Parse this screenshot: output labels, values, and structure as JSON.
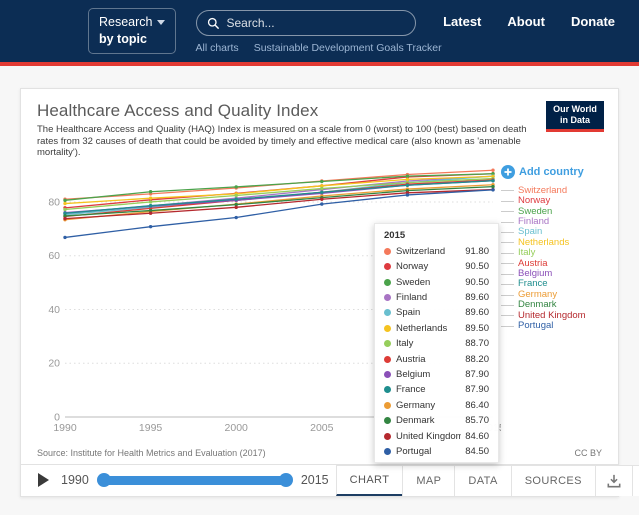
{
  "navbar": {
    "research_line1": "Research",
    "research_line2": "by topic",
    "search_placeholder": "Search...",
    "links": [
      {
        "label": "Latest"
      },
      {
        "label": "About"
      },
      {
        "label": "Donate"
      }
    ],
    "subnav": [
      {
        "label": "All charts"
      },
      {
        "label": "Sustainable Development Goals Tracker"
      }
    ],
    "colors": {
      "background": "#0c2d54",
      "accent_red": "#e23a33"
    }
  },
  "logo": {
    "line1": "Our World",
    "line2": "in Data"
  },
  "chart": {
    "title": "Healthcare Access and Quality Index",
    "subtitle": "The Healthcare Access and Quality (HAQ) Index is measured on a scale from 0 (worst) to 100 (best) based on death rates from 32 causes of death that could be avoided by timely and effective medical care (also known as 'amenable mortality').",
    "add_country_label": "Add country",
    "source": "Source: Institute for Health Metrics and Evaluation (2017)",
    "license": "CC BY"
  },
  "chart_data": {
    "type": "line",
    "title": "Healthcare Access and Quality Index",
    "x": [
      1990,
      1995,
      2000,
      2005,
      2010,
      2015
    ],
    "xticks": [
      1990,
      1995,
      2000,
      2005,
      2010,
      2015
    ],
    "yticks": [
      0,
      20,
      40,
      60,
      80
    ],
    "ylim": [
      0,
      93
    ],
    "grid": true,
    "legend_position": "right",
    "series": [
      {
        "name": "Switzerland",
        "color": "#f4795b",
        "values": [
          81.0,
          83.0,
          85.2,
          87.8,
          90.2,
          91.8
        ]
      },
      {
        "name": "Norway",
        "color": "#de3a3f",
        "values": [
          77.8,
          80.8,
          83.2,
          86.0,
          89.3,
          90.5
        ]
      },
      {
        "name": "Sweden",
        "color": "#4ba34b",
        "values": [
          80.6,
          83.8,
          85.6,
          87.6,
          89.6,
          90.5
        ]
      },
      {
        "name": "Finland",
        "color": "#a874c4",
        "values": [
          75.6,
          78.6,
          81.4,
          84.6,
          87.8,
          89.6
        ]
      },
      {
        "name": "Spain",
        "color": "#69bfcf",
        "values": [
          75.3,
          78.0,
          80.6,
          83.6,
          87.2,
          89.6
        ]
      },
      {
        "name": "Netherlands",
        "color": "#f5c320",
        "values": [
          79.4,
          81.4,
          83.0,
          86.0,
          88.4,
          89.5
        ]
      },
      {
        "name": "Italy",
        "color": "#96ce5b",
        "values": [
          77.2,
          80.0,
          82.4,
          85.0,
          87.2,
          88.7
        ]
      },
      {
        "name": "Austria",
        "color": "#dd3c37",
        "values": [
          74.6,
          77.6,
          80.6,
          83.6,
          86.6,
          88.2
        ]
      },
      {
        "name": "Belgium",
        "color": "#8b50b8",
        "values": [
          76.0,
          78.4,
          80.6,
          83.2,
          86.2,
          87.9
        ]
      },
      {
        "name": "France",
        "color": "#1f8e8e",
        "values": [
          75.8,
          78.6,
          81.0,
          83.6,
          86.2,
          87.9
        ]
      },
      {
        "name": "Germany",
        "color": "#ec9c35",
        "values": [
          73.4,
          76.4,
          79.2,
          82.2,
          84.8,
          86.4
        ]
      },
      {
        "name": "Denmark",
        "color": "#338542",
        "values": [
          74.8,
          76.8,
          79.0,
          81.6,
          84.2,
          85.7
        ]
      },
      {
        "name": "United Kingdom",
        "color": "#b5292e",
        "values": [
          73.8,
          75.8,
          78.0,
          81.0,
          83.4,
          84.6
        ]
      },
      {
        "name": "Portugal",
        "color": "#2f5fa5",
        "values": [
          66.8,
          70.8,
          74.2,
          79.2,
          82.6,
          84.5
        ]
      }
    ]
  },
  "tooltip": {
    "year": "2015"
  },
  "timeline": {
    "start": "1990",
    "end": "2015"
  },
  "tabs": [
    {
      "label": "CHART",
      "active": true
    },
    {
      "label": "MAP",
      "active": false
    },
    {
      "label": "DATA",
      "active": false
    },
    {
      "label": "SOURCES",
      "active": false
    }
  ]
}
